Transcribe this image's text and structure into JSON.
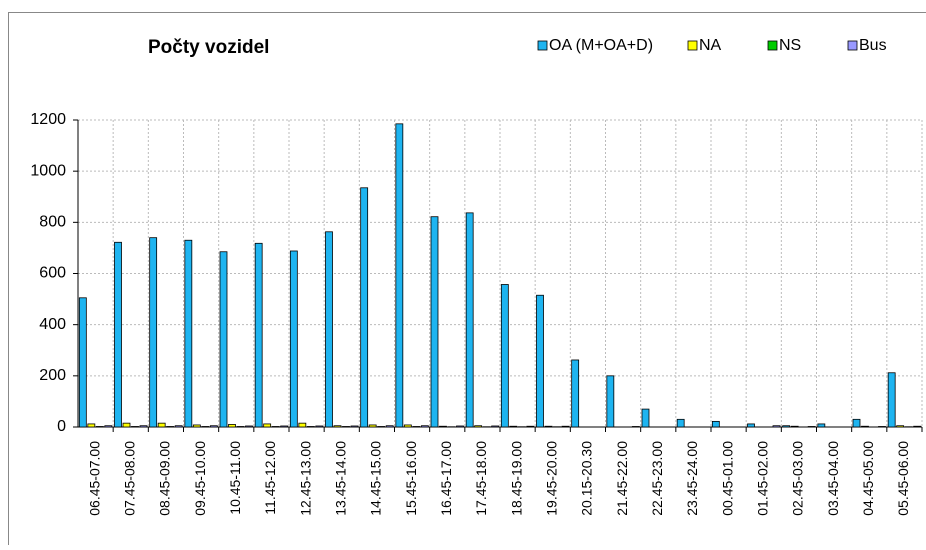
{
  "chart_data": {
    "type": "bar",
    "title": "Počty vozidel",
    "categories": [
      "06.45-07.00",
      "07.45-08.00",
      "08.45-09.00",
      "09.45-10.00",
      "10.45-11.00",
      "11.45-12.00",
      "12.45-13.00",
      "13.45-14.00",
      "14.45-15.00",
      "15.45-16.00",
      "16.45-17.00",
      "17.45-18.00",
      "18.45-19.00",
      "19.45-20.00",
      "20.15-20.30",
      "21.45-22.00",
      "22.45-23.00",
      "23.45-24.00",
      "00.45-01.00",
      "01.45-02.00",
      "02.45-03.00",
      "03.45-04.00",
      "04.45-05.00",
      "05.45-06.00"
    ],
    "series": [
      {
        "name": "OA (M+OA+D)",
        "color": "#1eb4f0",
        "values": [
          505,
          722,
          740,
          730,
          685,
          718,
          688,
          763,
          935,
          1185,
          822,
          837,
          557,
          515,
          262,
          200,
          70,
          30,
          22,
          12,
          5,
          12,
          30,
          212
        ]
      },
      {
        "name": "NA",
        "color": "#ffff00",
        "values": [
          12,
          15,
          15,
          8,
          10,
          12,
          15,
          5,
          8,
          8,
          3,
          5,
          3,
          3,
          0,
          0,
          0,
          0,
          0,
          0,
          3,
          0,
          3,
          5
        ]
      },
      {
        "name": "NS",
        "color": "#00cc00",
        "values": [
          2,
          2,
          2,
          2,
          2,
          2,
          2,
          2,
          2,
          2,
          1,
          1,
          1,
          1,
          0,
          0,
          0,
          0,
          0,
          0,
          0,
          0,
          0,
          1
        ]
      },
      {
        "name": "Bus",
        "color": "#9999ff",
        "values": [
          5,
          5,
          5,
          5,
          4,
          4,
          4,
          4,
          5,
          5,
          4,
          4,
          3,
          3,
          0,
          2,
          0,
          0,
          0,
          5,
          2,
          0,
          2,
          3
        ]
      }
    ],
    "ylim": [
      0,
      1200
    ],
    "yticks": [
      0,
      200,
      400,
      600,
      800,
      1000,
      1200
    ],
    "grid": true,
    "legend": "top-right"
  }
}
